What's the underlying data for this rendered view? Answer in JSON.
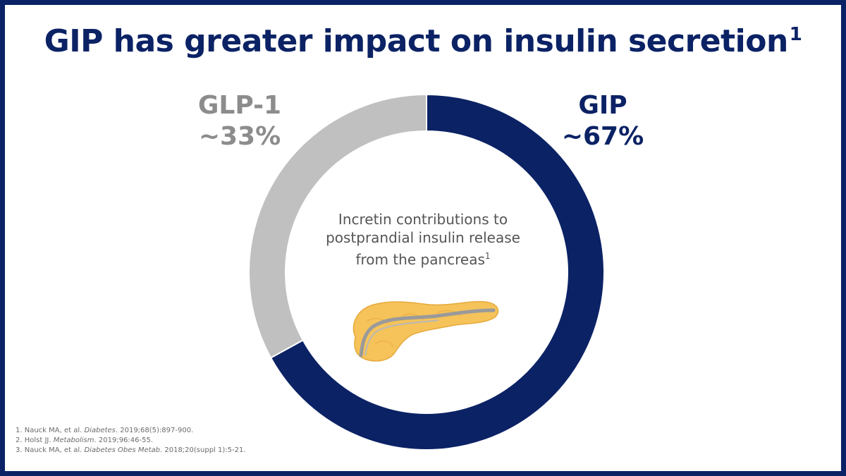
{
  "title": {
    "text": "GIP has greater impact on insulin secretion",
    "superscript": "1"
  },
  "chart_data": {
    "type": "pie",
    "style": "donut",
    "center_label": "Incretin contributions to postprandial insulin release from the pancreas",
    "center_label_lines": [
      "Incretin contributions to",
      "postprandial insulin release",
      "from the pancreas"
    ],
    "center_label_superscript": "1",
    "slices": [
      {
        "label": "GIP",
        "value": 67,
        "value_text": "~67%",
        "color": "#0b2265"
      },
      {
        "label": "GLP-1",
        "value": 33,
        "value_text": "~33%",
        "color": "#c0c0c0"
      }
    ]
  },
  "references": [
    {
      "pre": "1. Nauck MA, et al. ",
      "journal": "Diabetes",
      "post": ". 2019;68(5):897-900."
    },
    {
      "pre": "2. Holst JJ. ",
      "journal": "Metabolism",
      "post": ". 2019;96:46-55."
    },
    {
      "pre": "3. Nauck MA, et al. ",
      "journal": "Diabetes Obes Metab",
      "post": ". 2018;20(suppl 1):5-21."
    }
  ],
  "illustration": {
    "icon": "pancreas-icon"
  },
  "colors": {
    "brand_navy": "#0b2265",
    "gray": "#c0c0c0",
    "pancreas": "#f5c35a"
  }
}
